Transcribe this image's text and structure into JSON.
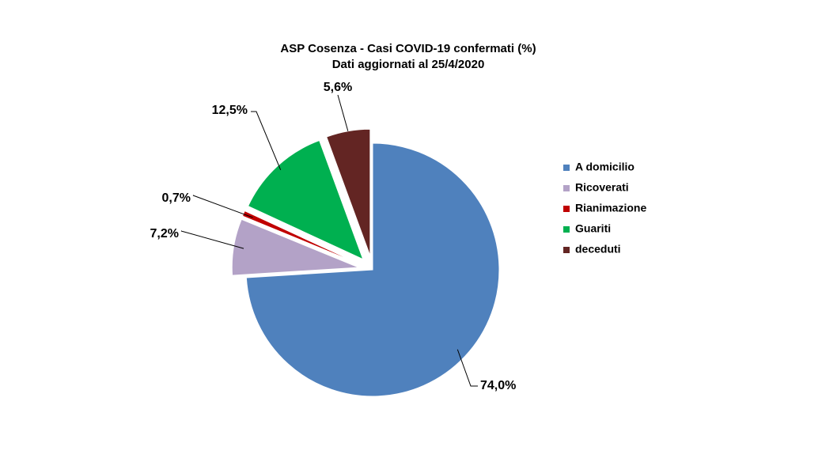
{
  "chart_data": {
    "type": "pie",
    "title": "ASP Cosenza - Casi COVID-19 confermati (%)",
    "subtitle": "Dati aggiornati al 25/4/2020",
    "exploded": true,
    "legend_position": "right",
    "slices": [
      {
        "name": "A domicilio",
        "value": 74.0,
        "label": "74,0%",
        "color": "#4f81bd"
      },
      {
        "name": "Ricoverati",
        "value": 7.2,
        "label": "7,2%",
        "color": "#b3a2c7"
      },
      {
        "name": "Rianimazione",
        "value": 0.7,
        "label": "0,7%",
        "color": "#c00000"
      },
      {
        "name": "Guariti",
        "value": 12.5,
        "label": "12,5%",
        "color": "#00b050"
      },
      {
        "name": "deceduti",
        "value": 5.6,
        "label": "5,6%",
        "color": "#632523"
      }
    ]
  }
}
